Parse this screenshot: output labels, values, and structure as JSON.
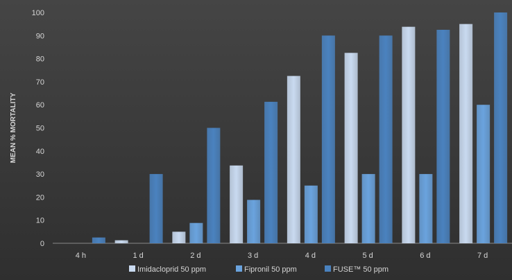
{
  "chart_data": {
    "type": "bar",
    "categories": [
      "4 h",
      "1 d",
      "2 d",
      "3 d",
      "4 d",
      "5 d",
      "6 d",
      "7 d"
    ],
    "series": [
      {
        "name": "Imidacloprid 50 ppm",
        "color": "#c9daf0",
        "values": [
          0,
          1.3,
          5,
          33.7,
          72.5,
          82.5,
          93.8,
          95
        ]
      },
      {
        "name": "Fipronil 50 ppm",
        "color": "#6aa3de",
        "values": [
          0,
          0,
          8.8,
          18.8,
          25,
          30,
          30,
          60
        ]
      },
      {
        "name": "FUSE™ 50 ppm",
        "color": "#4a82bf",
        "values": [
          2.5,
          30,
          50,
          61.3,
          90,
          90,
          92.5,
          100
        ]
      }
    ],
    "ylabel": "MEAN % MORTALITY",
    "ylim": [
      0,
      100
    ],
    "yticks": [
      0,
      10,
      20,
      30,
      40,
      50,
      60,
      70,
      80,
      90,
      100
    ],
    "grid": false,
    "legend": "bottom"
  }
}
